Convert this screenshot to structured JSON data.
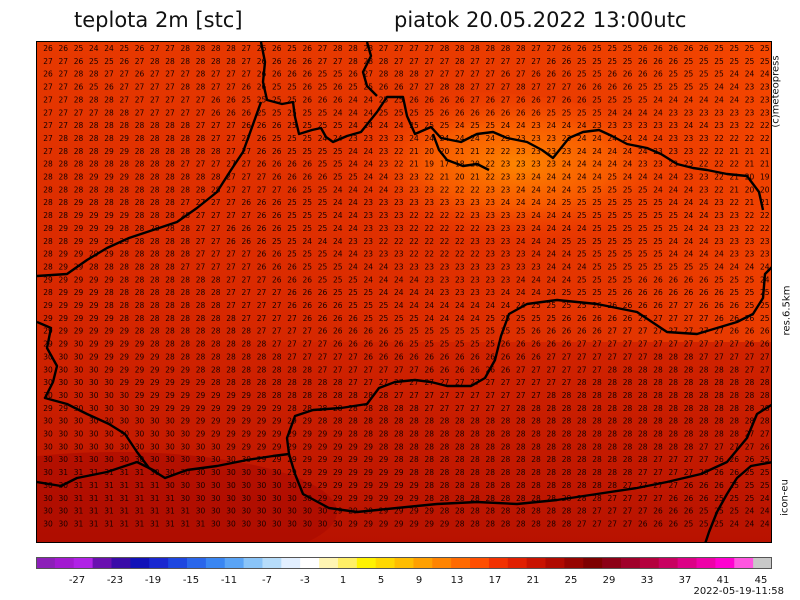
{
  "title_left": "teplota 2m [stc]",
  "title_right": "piatok 20.05.2022 13:00utc",
  "side_labels": {
    "credit": "(c)meteopress",
    "resolution": "res.6.5km",
    "model": "icon-eu"
  },
  "timestamp": "2022-05-19-11:58",
  "colorbar": {
    "tick_labels": [
      "-27",
      "-23",
      "-19",
      "-15",
      "-11",
      "-7",
      "-3",
      "1",
      "5",
      "9",
      "13",
      "17",
      "21",
      "25",
      "29",
      "33",
      "37",
      "41",
      "45"
    ],
    "colors": [
      "#8c1fb8",
      "#a21ad0",
      "#b022e6",
      "#6a10b0",
      "#3a0ca8",
      "#1212b8",
      "#1a28d0",
      "#1d46e0",
      "#2a66ea",
      "#3a86f2",
      "#5aa4f6",
      "#8ac4f8",
      "#b6dcfa",
      "#e2efff",
      "#ffffff",
      "#fff5b3",
      "#ffef66",
      "#fff200",
      "#ffd800",
      "#ffbd00",
      "#ffa000",
      "#ff8400",
      "#ff6a00",
      "#ff4e00",
      "#f23100",
      "#e01f00",
      "#c81300",
      "#b00a00",
      "#960400",
      "#7e0000",
      "#8c0016",
      "#a0002a",
      "#b4003e",
      "#c80060",
      "#dc0086",
      "#ee00a8",
      "#ff00d0",
      "#ff55e0",
      "#c8c8c8"
    ]
  },
  "grid_values": [
    "26 26 25 24 24 25 26 27 27 28 28 28 28 27 26 26 25 26 27 28 28 28 27 27 27 27 28 28 28 28 28 28 27 27 26 26 25 25 25 26 26 26 26 26 25 25 25 25",
    "27 27 26 25 25 26 27 28 28 28 28 28 28 27 26 26 26 26 27 27 28 28 28 27 27 27 27 28 27 27 27 27 27 26 26 25 25 25 25 26 26 26 25 25 25 25 25 25",
    "26 27 28 28 27 27 26 27 27 27 28 27 27 27 26 26 26 26 25 25 26 27 28 28 28 27 27 27 27 27 26 27 26 26 26 25 25 26 26 26 26 25 25 25 25 24 24 24",
    "27 27 26 25 26 27 27 27 27 28 28 27 27 26 26 25 25 26 25 26 25 25 26 26 27 27 28 28 27 27 27 28 27 27 27 26 26 26 26 25 25 25 25 25 24 24 23 23",
    "27 27 28 28 28 27 27 27 27 27 27 26 26 25 25 25 25 26 26 26 24 24 25 25 26 26 26 26 27 26 27 26 26 27 26 26 25 25 25 25 24 24 24 24 24 24 23 23",
    "27 27 27 27 28 28 27 27 27 27 27 26 26 26 25 25 25 25 25 24 24 24 25 25 25 25 26 26 26 26 26 26 26 25 25 25 25 24 24 24 24 23 23 23 23 23 23 23",
    "27 27 28 28 28 28 28 28 28 28 27 27 27 26 26 26 25 25 25 25 24 24 24 24 25 25 25 24 25 25 24 24 23 24 24 24 23 23 23 23 23 23 24 24 23 23 22 22",
    "27 28 28 28 28 29 28 28 28 28 28 27 27 27 26 25 25 25 24 24 23 23 23 23 24 24 24 24 24 24 23 23 23 23 23 24 24 24 24 24 24 23 23 23 22 22 22 22",
    "27 28 28 28 29 29 28 28 28 28 28 28 27 27 26 26 25 25 25 25 24 24 23 22 21 20 20 21 21 22 22 23 23 23 23 24 24 24 24 24 23 23 23 22 22 21 21 21",
    "28 28 28 28 28 28 28 28 28 27 27 27 27 27 26 26 26 26 25 25 24 24 23 22 21 19 17 18 20 22 23 23 23 23 24 24 24 24 24 23 23 23 23 22 22 22 21 21",
    "28 28 28 29 29 29 28 28 28 28 28 28 27 27 27 26 26 26 26 25 25 24 24 23 23 22 21 20 21 22 23 23 24 24 24 24 24 25 24 24 24 24 23 23 22 21 20 19",
    "28 28 28 28 28 28 28 28 28 28 28 28 27 27 27 27 26 25 25 24 24 24 24 23 23 23 22 22 22 23 23 24 24 24 24 25 25 25 25 25 24 24 24 23 22 21 20 20",
    "28 28 29 28 28 28 28 28 28 27 27 27 27 26 26 26 25 25 25 24 24 23 23 23 23 23 23 23 23 23 24 24 24 24 25 25 25 25 25 25 25 24 24 24 23 22 21 21",
    "28 28 29 29 29 29 28 28 28 28 27 27 27 27 26 26 25 25 25 24 24 23 23 23 22 22 22 22 23 23 23 23 24 24 24 25 25 25 25 25 25 25 24 24 23 23 22 22",
    "28 29 29 29 29 28 28 28 28 28 27 27 26 26 26 26 25 25 25 24 24 23 23 23 22 22 22 22 22 23 23 23 24 24 24 24 25 25 25 25 25 25 24 24 23 23 22 22",
    "28 28 29 29 29 29 28 28 28 28 27 27 26 26 26 25 25 24 24 24 23 23 22 22 22 22 22 22 23 23 23 24 24 24 25 25 25 25 25 25 25 24 24 24 23 23 23 23",
    "28 29 29 29 29 28 28 28 28 28 27 27 27 27 26 26 25 25 25 24 24 23 23 23 22 22 22 22 22 23 23 23 24 24 24 25 25 25 25 25 25 24 24 24 24 23 23 23",
    "28 29 29 28 28 28 28 28 28 27 27 27 27 27 26 26 26 25 25 25 24 24 24 23 23 23 23 23 23 23 23 23 23 24 24 24 25 25 25 25 25 25 25 25 24 24 24 24",
    "29 29 29 29 29 28 28 28 28 28 28 28 27 27 27 26 26 26 25 25 25 24 24 24 24 23 23 23 23 23 23 24 24 24 24 25 25 25 25 26 26 26 26 26 25 25 25 24",
    "28 29 29 29 28 28 28 28 28 28 28 28 27 27 27 27 26 26 26 25 25 25 24 24 24 24 23 23 23 23 24 24 24 24 25 25 25 25 26 26 26 26 26 26 26 25 25 25",
    "29 29 29 29 28 28 28 28 28 28 28 28 27 27 27 27 26 26 26 26 25 25 25 24 24 24 24 24 24 24 24 24 25 25 25 25 26 26 26 26 26 27 27 26 26 26 25 25",
    "29 29 29 29 29 28 28 28 28 28 28 28 28 27 27 27 27 26 26 26 26 25 25 25 25 24 24 24 24 25 25 25 25 25 26 26 26 26 26 27 27 27 27 27 26 26 26 25",
    "29 29 29 29 29 29 28 28 28 28 28 28 28 28 27 27 27 27 26 26 26 26 26 25 25 25 25 25 25 25 25 25 26 26 26 26 26 27 27 27 27 27 27 27 27 26 26 26",
    "29 29 30 29 29 29 29 28 28 28 28 28 28 28 28 27 27 27 27 26 26 26 26 26 25 25 25 25 25 25 26 26 26 26 26 27 27 27 27 27 27 27 27 27 27 27 26 26",
    "30 30 30 29 29 29 29 29 28 28 28 28 28 28 28 28 27 27 27 27 27 26 26 26 26 26 26 26 26 26 26 26 26 27 27 27 27 27 27 27 28 28 28 27 27 27 27 27",
    "30 30 30 30 29 29 29 29 29 29 28 28 28 28 28 28 28 28 27 27 27 27 27 27 27 26 26 26 26 26 26 27 27 27 27 27 27 28 28 28 28 28 28 28 28 28 27 27",
    "30 30 30 30 30 29 29 29 29 29 29 28 28 28 28 28 28 28 28 28 27 27 27 27 27 27 27 27 27 27 27 27 27 27 27 28 28 28 28 28 28 28 28 28 28 28 28 28",
    "30 30 30 30 30 30 29 29 29 29 29 29 29 29 28 28 28 28 28 28 28 28 28 27 27 27 27 27 27 27 27 27 27 28 28 28 28 28 28 28 28 28 28 28 28 28 28 28",
    "29 29 30 30 30 30 30 29 29 29 29 29 29 29 29 29 28 28 28 28 28 28 28 28 28 27 27 27 27 27 27 28 28 28 28 28 28 28 28 28 28 28 28 28 28 28 28 28",
    "30 30 30 30 30 30 30 30 30 29 29 29 29 29 29 29 29 29 28 28 28 28 28 28 28 28 28 28 28 28 28 28 28 28 28 28 28 28 28 28 28 28 28 28 28 28 28 28",
    "30 30 30 30 30 30 30 30 30 30 29 29 29 29 29 29 29 29 29 29 28 28 28 28 28 28 28 28 28 28 28 28 28 28 28 28 28 28 28 28 28 28 28 28 28 28 27 27",
    "30 30 30 30 30 30 30 30 30 30 30 30 29 29 29 29 29 29 29 29 29 29 28 28 28 28 28 28 28 28 28 28 28 28 28 28 28 28 28 28 28 28 28 27 27 27 27 26",
    "30 30 31 30 30 30 30 30 30 30 30 30 30 30 29 29 29 29 29 29 29 29 29 28 28 28 28 28 28 28 28 28 28 28 28 28 28 28 28 28 27 27 27 27 26 26 26 25",
    "30 31 31 31 31 31 31 30 30 30 30 30 30 30 30 30 29 29 29 29 29 29 29 29 28 28 28 28 28 28 28 28 28 28 28 28 28 28 28 27 27 27 27 26 26 26 25 25",
    "30 30 31 31 31 31 31 31 30 30 30 30 30 30 30 30 30 29 29 29 29 29 29 29 29 28 28 28 28 28 28 28 28 28 28 28 28 28 27 27 27 27 26 26 26 25 25 25",
    "30 30 31 31 31 31 31 31 31 30 30 30 30 30 30 30 30 30 29 29 29 29 29 29 29 28 28 28 28 28 28 28 28 28 28 28 28 27 27 27 27 26 26 26 25 25 25 24",
    "30 30 31 31 31 31 31 31 31 31 30 30 30 30 30 30 30 30 30 29 29 29 29 29 29 29 28 28 28 28 28 28 28 28 28 28 27 27 27 27 26 26 26 25 25 25 24 24",
    "30 30 31 31 31 31 31 31 31 31 31 30 30 30 30 30 30 30 30 30 29 29 29 29 29 29 29 28 28 28 28 28 28 28 28 27 27 27 27 26 26 26 25 25 25 24 24 24"
  ]
}
